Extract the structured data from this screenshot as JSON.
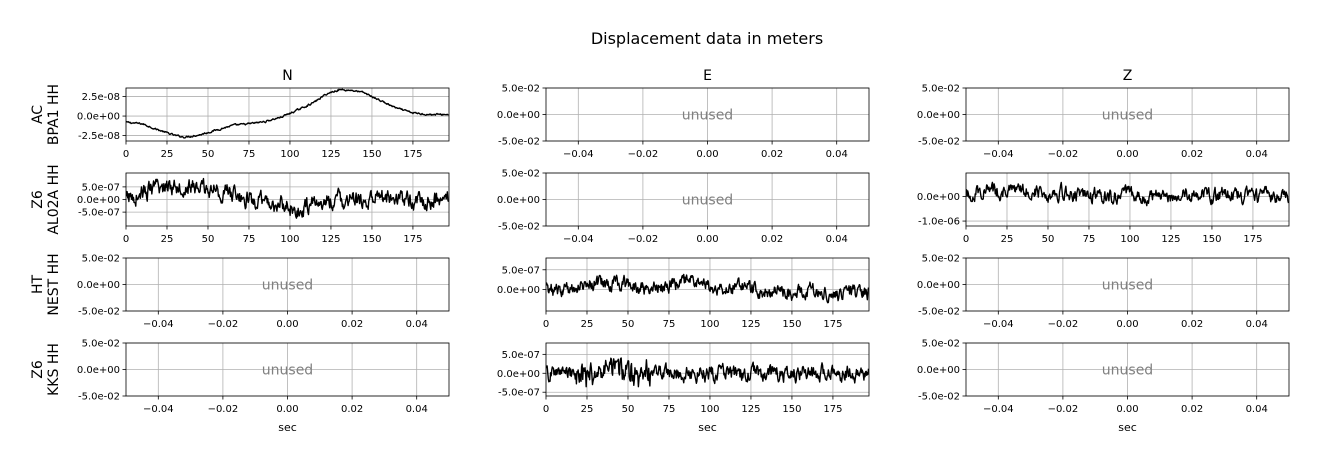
{
  "chart_data": {
    "type": "line",
    "title": "Displacement data in meters",
    "columns": [
      "N",
      "E",
      "Z"
    ],
    "rows": [
      {
        "network": "AC",
        "station": "BPA1 HH"
      },
      {
        "network": "Z6",
        "station": "AL02A HH"
      },
      {
        "network": "HT",
        "station": "NEST HH"
      },
      {
        "network": "Z6",
        "station": "KKS HH"
      }
    ],
    "xlabel": "sec",
    "unused_label": "unused",
    "unused_axes": {
      "xticks": [
        "−0.04",
        "−0.02",
        "0.00",
        "0.02",
        "0.04"
      ],
      "yticks": [
        "5.0e-02",
        "0.0e+00",
        "-5.0e-02"
      ]
    },
    "time_axis": {
      "xlim": [
        0,
        197
      ],
      "xticks": [
        "0",
        "25",
        "50",
        "75",
        "100",
        "125",
        "150",
        "175"
      ]
    },
    "panels": [
      {
        "row": 0,
        "col": 0,
        "used": true,
        "ylim": [
          -3.2e-08,
          3.6e-08
        ],
        "yticks": [
          {
            "value": 2.5e-08,
            "label": "2.5e-08"
          },
          {
            "value": 0,
            "label": "0.0e+00"
          },
          {
            "value": -2.5e-08,
            "label": "-2.5e-08"
          }
        ],
        "amplitude": 1e-09,
        "x": [
          0,
          10,
          20,
          30,
          36,
          45,
          55,
          65,
          75,
          85,
          95,
          105,
          115,
          122,
          130,
          138,
          145,
          155,
          165,
          175,
          185,
          197
        ],
        "y": [
          -8e-09,
          -1e-08,
          -1.8e-08,
          -2.5e-08,
          -2.7e-08,
          -2.4e-08,
          -1.8e-08,
          -1.2e-08,
          -1e-08,
          -7e-09,
          -1e-09,
          8e-09,
          1.8e-08,
          2.8e-08,
          3.4e-08,
          3.3e-08,
          3e-08,
          2e-08,
          1e-08,
          4e-09,
          2e-09,
          2e-09
        ]
      },
      {
        "row": 0,
        "col": 1,
        "used": false
      },
      {
        "row": 0,
        "col": 2,
        "used": false
      },
      {
        "row": 1,
        "col": 0,
        "used": true,
        "ylim": [
          -1.05e-06,
          1.05e-06
        ],
        "yticks": [
          {
            "value": 5e-07,
            "label": "5.0e-07"
          },
          {
            "value": 0,
            "label": "0.0e+00"
          },
          {
            "value": -5e-07,
            "label": "-5.0e-07"
          }
        ],
        "amplitude": 3e-07,
        "x": [
          0,
          10,
          20,
          30,
          40,
          50,
          60,
          70,
          80,
          90,
          100,
          105,
          110,
          120,
          130,
          140,
          150,
          160,
          170,
          180,
          197
        ],
        "y": [
          0,
          3e-07,
          4e-07,
          6e-07,
          5e-07,
          4e-07,
          3e-07,
          1e-07,
          -1e-07,
          -2e-07,
          -3e-07,
          -5e-07,
          -3e-07,
          -1e-07,
          0,
          -1e-07,
          0,
          1e-07,
          0,
          -1e-07,
          0
        ]
      },
      {
        "row": 1,
        "col": 1,
        "used": false
      },
      {
        "row": 1,
        "col": 2,
        "used": true,
        "ylim": [
          -1.2e-06,
          9.5e-07
        ],
        "yticks": [
          {
            "value": 0,
            "label": "0.0e+00"
          },
          {
            "value": -1e-06,
            "label": "-1.0e-06"
          }
        ],
        "amplitude": 2.5e-07,
        "x": [
          0,
          10,
          20,
          30,
          40,
          50,
          60,
          70,
          80,
          90,
          100,
          110,
          120,
          130,
          140,
          150,
          160,
          170,
          180,
          197
        ],
        "y": [
          0,
          3e-07,
          2e-07,
          2e-07,
          3e-07,
          1e-07,
          2e-07,
          0,
          1e-07,
          0,
          1e-07,
          -1e-07,
          1e-07,
          0,
          1e-07,
          0,
          1e-07,
          0,
          0,
          0
        ]
      },
      {
        "row": 2,
        "col": 0,
        "used": false
      },
      {
        "row": 2,
        "col": 1,
        "used": true,
        "ylim": [
          -5.5e-07,
          8e-07
        ],
        "yticks": [
          {
            "value": 5e-07,
            "label": "5.0e-07"
          },
          {
            "value": 0,
            "label": "0.0e+00"
          }
        ],
        "amplitude": 1.6e-07,
        "x": [
          0,
          10,
          20,
          30,
          40,
          50,
          60,
          70,
          80,
          90,
          100,
          110,
          120,
          130,
          140,
          150,
          160,
          170,
          180,
          197
        ],
        "y": [
          0,
          -5e-08,
          1e-07,
          2e-07,
          1e-07,
          1.5e-07,
          0,
          1e-07,
          1.5e-07,
          2e-07,
          1e-07,
          0,
          1e-07,
          -1e-07,
          0,
          -1e-07,
          0,
          -1e-07,
          -1e-07,
          -1e-07
        ]
      },
      {
        "row": 2,
        "col": 2,
        "used": false
      },
      {
        "row": 3,
        "col": 0,
        "used": false
      },
      {
        "row": 3,
        "col": 1,
        "used": true,
        "ylim": [
          -6e-07,
          8e-07
        ],
        "yticks": [
          {
            "value": 5e-07,
            "label": "5.0e-07"
          },
          {
            "value": 0,
            "label": "0.0e+00"
          },
          {
            "value": -5e-07,
            "label": "-5.0e-07"
          }
        ],
        "amplitude": 1.8e-07,
        "x": [
          0,
          10,
          20,
          30,
          40,
          50,
          60,
          70,
          80,
          90,
          100,
          110,
          120,
          130,
          140,
          150,
          160,
          170,
          180,
          197
        ],
        "y": [
          0,
          0,
          0,
          0,
          0,
          0,
          0,
          0,
          0,
          0,
          0,
          0,
          0,
          0,
          0,
          0,
          0,
          0,
          0,
          0
        ]
      },
      {
        "row": 3,
        "col": 2,
        "used": false
      }
    ]
  }
}
